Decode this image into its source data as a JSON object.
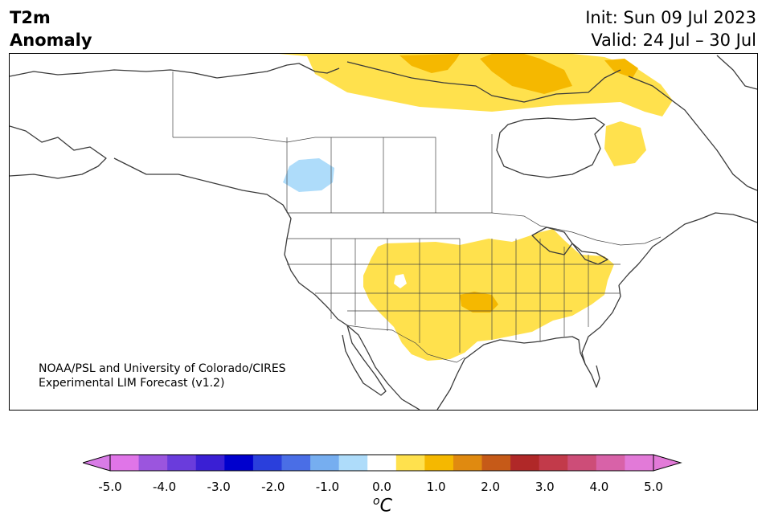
{
  "header": {
    "variable": "T2m",
    "subtitle": "Anomaly",
    "init": "Init: Sun 09 Jul 2023",
    "valid": "Valid: 24 Jul – 30 Jul"
  },
  "map": {
    "region": "North America",
    "credit_line1": "NOAA/PSL and University of Colorado/CIRES",
    "credit_line2": "Experimental LIM Forecast (v1.2)"
  },
  "colorbar": {
    "unit_main": "C",
    "unit_sup": "o",
    "ticks": [
      "-5.0",
      "-4.0",
      "-3.0",
      "-2.0",
      "-1.0",
      "0.0",
      "1.0",
      "2.0",
      "3.0",
      "4.0",
      "5.0"
    ],
    "levels": [
      -5.0,
      -4.5,
      -4.0,
      -3.5,
      -3.0,
      -2.5,
      -2.0,
      -1.5,
      -1.0,
      -0.5,
      0.5,
      1.0,
      1.5,
      2.0,
      2.5,
      3.0,
      3.5,
      4.0,
      4.5,
      5.0
    ],
    "colors": [
      "#e075e8",
      "#9b55de",
      "#6a3cdc",
      "#3a1fd4",
      "#0000cd",
      "#2a3fdc",
      "#4a6ee6",
      "#76aef0",
      "#aedcfa",
      "#ffffff",
      "#ffe14d",
      "#f5b800",
      "#e08a10",
      "#c65a18",
      "#b02828",
      "#c23a4a",
      "#cd4d78",
      "#d862a8",
      "#e27ad8"
    ],
    "under_color": "#d87be6",
    "over_color": "#e27ad8"
  },
  "anomaly_colors": {
    "warm_light": "#ffe14d",
    "warm_medium": "#f5b800",
    "cool_light": "#aedcfa"
  }
}
